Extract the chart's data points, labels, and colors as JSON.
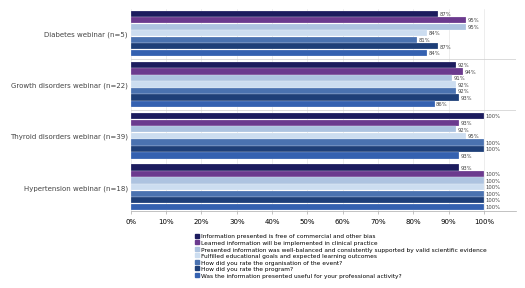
{
  "groups": [
    {
      "label": "Diabetes webinar (n=5)",
      "values": [
        87,
        95,
        95,
        84,
        81,
        87,
        84
      ]
    },
    {
      "label": "Growth disorders webinar (n=22)",
      "values": [
        92,
        94,
        91,
        92,
        92,
        93,
        86
      ]
    },
    {
      "label": "Thyroid disorders webinar (n=39)",
      "values": [
        100,
        93,
        92,
        95,
        100,
        100,
        93
      ]
    },
    {
      "label": "Hypertension webinar (n=18)",
      "values": [
        93,
        100,
        100,
        100,
        100,
        100,
        100
      ]
    }
  ],
  "series_colors": [
    "#1c1c5e",
    "#6b3a8e",
    "#adc3e0",
    "#ccddf0",
    "#4a72b0",
    "#1e3f78",
    "#3461b0"
  ],
  "series_labels": [
    "Information presented is free of commercial and other bias",
    "Learned information will be implemented in clinical practice",
    "Presented information was well-balanced and consistently supported by valid scientific evidence",
    "Fulfilled educational goals and expected learning outcomes",
    "How did you rate the organisation of the event?",
    "How did you rate the program?",
    "Was the information presented useful for your professional activity?"
  ],
  "xticks": [
    0,
    10,
    20,
    30,
    40,
    50,
    60,
    70,
    80,
    90,
    100
  ],
  "xticklabels": [
    "0%",
    "10%",
    "20%",
    "30%",
    "40%",
    "50%",
    "60%",
    "70%",
    "80%",
    "90%",
    "100%"
  ],
  "figure_bg": "#ffffff",
  "text_color": "#444444",
  "label_fontsize": 5.0,
  "tick_fontsize": 5.0,
  "legend_fontsize": 4.2,
  "value_fontsize": 3.8
}
